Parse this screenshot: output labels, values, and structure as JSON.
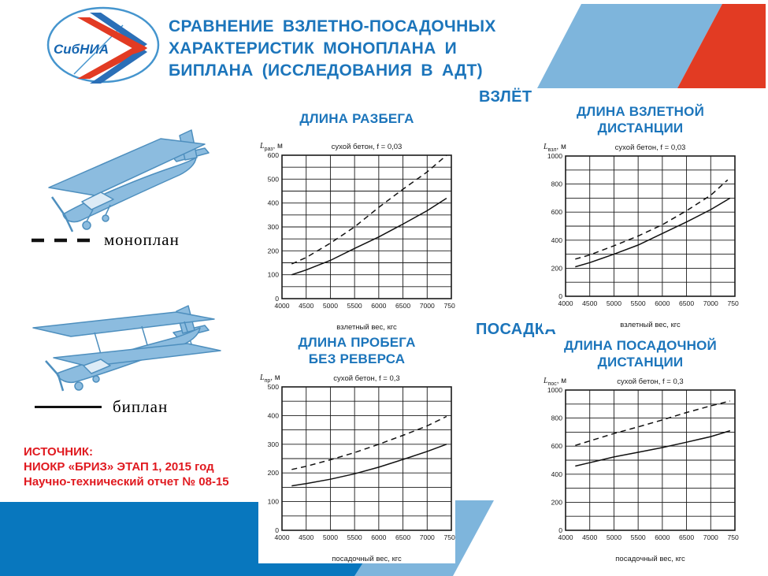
{
  "header": {
    "logo_text": "СибНИА",
    "title": "СРАВНЕНИЕ ВЗЛЕТНО-ПОСАДОЧНЫХ\nХАРАКТЕРИСТИК МОНОПЛАНА И\nБИПЛАНА (ИССЛЕДОВАНИЯ В АДТ)"
  },
  "sections": {
    "takeoff": "ВЗЛЁТ",
    "landing": "ПОСАДКА"
  },
  "legend": {
    "monoplane": "моноплан",
    "biplane": "биплан"
  },
  "source": {
    "line1": "ИСТОЧНИК:",
    "line2": "НИОКР «БРИЗ» ЭТАП 1, 2015 год",
    "line3": "Научно-технический отчет № 08-15"
  },
  "colors": {
    "accent_blue": "#1C75BB",
    "light_blue": "#7EB5DC",
    "red": "#E23B23",
    "band_blue": "#0877BE",
    "source_red": "#E0191F",
    "curve_black": "#111111"
  },
  "chart_data": [
    {
      "type": "line",
      "title": "ДЛИНА РАЗБЕГА",
      "subtitle": "сухой бетон, f = 0,03",
      "ylabel": {
        "sym": "L",
        "sub": "раз",
        "unit": ", м"
      },
      "xlabel": "взлетный вес, кгс",
      "xlim": [
        4000,
        7500
      ],
      "xtick": 500,
      "ylim": [
        0,
        600
      ],
      "ytick": 100,
      "ygrid": 50,
      "grid": true,
      "legend_position": "none",
      "series": [
        {
          "name": "моноплан",
          "style": "dashed",
          "points": [
            [
              4200,
              145
            ],
            [
              4500,
              172
            ],
            [
              5000,
              232
            ],
            [
              5500,
              300
            ],
            [
              6000,
              382
            ],
            [
              6500,
              458
            ],
            [
              7000,
              530
            ],
            [
              7400,
              600
            ]
          ]
        },
        {
          "name": "биплан",
          "style": "solid",
          "points": [
            [
              4200,
              100
            ],
            [
              4500,
              120
            ],
            [
              5000,
              160
            ],
            [
              5500,
              210
            ],
            [
              6000,
              258
            ],
            [
              6500,
              312
            ],
            [
              7000,
              368
            ],
            [
              7400,
              420
            ]
          ]
        }
      ]
    },
    {
      "type": "line",
      "title": "ДЛИНА ВЗЛЕТНОЙ\nДИСТАНЦИИ",
      "subtitle": "сухой бетон, f = 0,03",
      "ylabel": {
        "sym": "L",
        "sub": "взл",
        "unit": ", м"
      },
      "xlabel": "взлетный вес, кгс",
      "xlim": [
        4000,
        7500
      ],
      "xtick": 500,
      "ylim": [
        0,
        1000
      ],
      "ytick": 200,
      "ygrid": 100,
      "grid": true,
      "legend_position": "none",
      "series": [
        {
          "name": "моноплан",
          "style": "dashed",
          "points": [
            [
              4200,
              265
            ],
            [
              4500,
              295
            ],
            [
              5000,
              360
            ],
            [
              5500,
              430
            ],
            [
              6000,
              510
            ],
            [
              6500,
              610
            ],
            [
              7000,
              720
            ],
            [
              7350,
              830
            ]
          ]
        },
        {
          "name": "биплан",
          "style": "solid",
          "points": [
            [
              4200,
              210
            ],
            [
              4500,
              240
            ],
            [
              5000,
              300
            ],
            [
              5500,
              365
            ],
            [
              6000,
              448
            ],
            [
              6500,
              530
            ],
            [
              7000,
              618
            ],
            [
              7400,
              700
            ]
          ]
        }
      ]
    },
    {
      "type": "line",
      "title": "ДЛИНА ПРОБЕГА\nБЕЗ РЕВЕРСА",
      "subtitle": "сухой бетон, f = 0,3",
      "ylabel": {
        "sym": "L",
        "sub": "пр",
        "unit": ", м"
      },
      "xlabel": "посадочный вес, кгс",
      "xlim": [
        4000,
        7500
      ],
      "xtick": 500,
      "ylim": [
        0,
        500
      ],
      "ytick": 100,
      "ygrid": 50,
      "grid": true,
      "legend_position": "none",
      "series": [
        {
          "name": "моноплан",
          "style": "dashed",
          "points": [
            [
              4200,
              212
            ],
            [
              4500,
              223
            ],
            [
              5000,
              246
            ],
            [
              5500,
              271
            ],
            [
              6000,
              300
            ],
            [
              6500,
              331
            ],
            [
              7000,
              364
            ],
            [
              7400,
              397
            ]
          ]
        },
        {
          "name": "биплан",
          "style": "solid",
          "points": [
            [
              4200,
              155
            ],
            [
              4500,
              163
            ],
            [
              5000,
              178
            ],
            [
              5500,
              197
            ],
            [
              6000,
              220
            ],
            [
              6500,
              247
            ],
            [
              7000,
              275
            ],
            [
              7400,
              300
            ]
          ]
        }
      ]
    },
    {
      "type": "line",
      "title": "ДЛИНА ПОСАДОЧНОЙ\nДИСТАНЦИИ",
      "subtitle": "сухой бетон, f = 0,3",
      "ylabel": {
        "sym": "L",
        "sub": "пос",
        "unit": ", м"
      },
      "xlabel": "посадочный вес, кгс",
      "xlim": [
        4000,
        7500
      ],
      "xtick": 500,
      "ylim": [
        0,
        1000
      ],
      "ytick": 200,
      "ygrid": 100,
      "grid": true,
      "legend_position": "none",
      "series": [
        {
          "name": "моноплан",
          "style": "dashed",
          "points": [
            [
              4200,
              605
            ],
            [
              4500,
              637
            ],
            [
              5000,
              690
            ],
            [
              5500,
              737
            ],
            [
              6000,
              787
            ],
            [
              6500,
              840
            ],
            [
              7000,
              887
            ],
            [
              7400,
              922
            ]
          ]
        },
        {
          "name": "биплан",
          "style": "solid",
          "points": [
            [
              4200,
              458
            ],
            [
              4500,
              482
            ],
            [
              5000,
              523
            ],
            [
              5500,
              556
            ],
            [
              6000,
              590
            ],
            [
              6500,
              628
            ],
            [
              7000,
              668
            ],
            [
              7400,
              710
            ]
          ]
        }
      ]
    }
  ]
}
